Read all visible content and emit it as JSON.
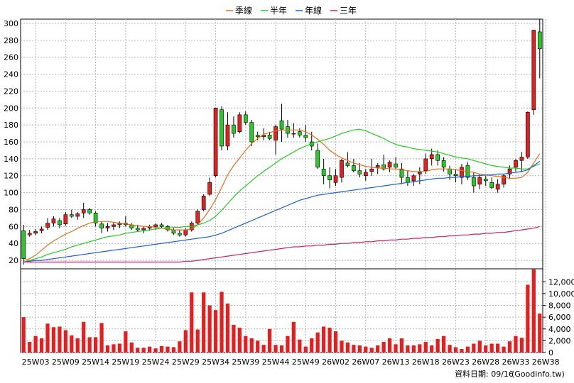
{
  "chart_data": {
    "type": "candlestick",
    "legend": [
      {
        "name": "季線",
        "color": "#e0701b"
      },
      {
        "name": "半年",
        "color": "#22cc22"
      },
      {
        "name": "年線",
        "color": "#1e5fd0"
      },
      {
        "name": "三年",
        "color": "#cc1f6a"
      }
    ],
    "colors": {
      "up": "#e81d1d",
      "down": "#22cc22",
      "volume": "#e81d1d",
      "grid": "#b4b4b4"
    },
    "price_ylim": [
      10,
      305
    ],
    "price_ticks": [
      20,
      40,
      60,
      80,
      100,
      120,
      140,
      160,
      180,
      200,
      220,
      240,
      260,
      280,
      300
    ],
    "volume_ylim": [
      0,
      14200
    ],
    "volume_ticks": [
      0,
      2000,
      4000,
      6000,
      8000,
      10000,
      12000
    ],
    "volume_tick_labels": [
      "0",
      "2,000",
      "4,000",
      "6,000",
      "8,000",
      "10,000",
      "12,000"
    ],
    "x_labels": [
      "25W03",
      "25W09",
      "25W14",
      "25W19",
      "25W24",
      "25W29",
      "25W34",
      "25W39",
      "25W44",
      "25W49",
      "26W02",
      "26W07",
      "26W13",
      "26W18",
      "26W23",
      "26W28",
      "26W33",
      "26W38"
    ],
    "x_label_index": [
      2,
      7,
      12,
      17,
      22,
      27,
      32,
      37,
      42,
      47,
      52,
      57,
      62,
      67,
      72,
      77,
      82,
      87
    ],
    "candles": [
      [
        55,
        62,
        15,
        22
      ],
      [
        50,
        56,
        48,
        52
      ],
      [
        52,
        57,
        50,
        54
      ],
      [
        55,
        60,
        52,
        57
      ],
      [
        59,
        70,
        56,
        64
      ],
      [
        64,
        72,
        60,
        69
      ],
      [
        67,
        70,
        58,
        62
      ],
      [
        63,
        77,
        61,
        74
      ],
      [
        74,
        80,
        70,
        72
      ],
      [
        72,
        77,
        68,
        75
      ],
      [
        76,
        88,
        70,
        80
      ],
      [
        80,
        82,
        74,
        76
      ],
      [
        76,
        78,
        60,
        64
      ],
      [
        63,
        66,
        52,
        58
      ],
      [
        58,
        64,
        54,
        60
      ],
      [
        60,
        65,
        56,
        62
      ],
      [
        62,
        66,
        58,
        64
      ],
      [
        64,
        72,
        60,
        62
      ],
      [
        62,
        64,
        56,
        58
      ],
      [
        58,
        62,
        54,
        56
      ],
      [
        56,
        60,
        52,
        58
      ],
      [
        58,
        62,
        55,
        60
      ],
      [
        60,
        64,
        56,
        62
      ],
      [
        62,
        64,
        58,
        60
      ],
      [
        60,
        62,
        54,
        56
      ],
      [
        56,
        58,
        50,
        52
      ],
      [
        52,
        56,
        48,
        50
      ],
      [
        50,
        58,
        48,
        56
      ],
      [
        56,
        66,
        54,
        64
      ],
      [
        64,
        80,
        62,
        78
      ],
      [
        80,
        98,
        78,
        96
      ],
      [
        98,
        118,
        96,
        112
      ],
      [
        120,
        200,
        118,
        200
      ],
      [
        198,
        202,
        150,
        155
      ],
      [
        155,
        195,
        150,
        180
      ],
      [
        180,
        190,
        165,
        170
      ],
      [
        172,
        195,
        170,
        192
      ],
      [
        192,
        196,
        180,
        183
      ],
      [
        183,
        186,
        155,
        160
      ],
      [
        168,
        172,
        162,
        166
      ],
      [
        166,
        176,
        162,
        168
      ],
      [
        168,
        172,
        162,
        164
      ],
      [
        162,
        180,
        145,
        178
      ],
      [
        185,
        205,
        160,
        175
      ],
      [
        178,
        186,
        165,
        170
      ],
      [
        170,
        182,
        165,
        170
      ],
      [
        172,
        176,
        165,
        168
      ],
      [
        168,
        180,
        160,
        165
      ],
      [
        160,
        172,
        150,
        155
      ],
      [
        150,
        158,
        128,
        130
      ],
      [
        128,
        140,
        110,
        120
      ],
      [
        120,
        130,
        105,
        115
      ],
      [
        112,
        128,
        108,
        120
      ],
      [
        118,
        140,
        112,
        138
      ],
      [
        135,
        148,
        130,
        132
      ],
      [
        132,
        140,
        124,
        126
      ],
      [
        126,
        135,
        118,
        122
      ],
      [
        120,
        128,
        114,
        124
      ],
      [
        125,
        140,
        120,
        128
      ],
      [
        130,
        135,
        122,
        132
      ],
      [
        133,
        145,
        126,
        128
      ],
      [
        130,
        138,
        124,
        136
      ],
      [
        134,
        142,
        128,
        130
      ],
      [
        128,
        135,
        110,
        118
      ],
      [
        118,
        126,
        108,
        112
      ],
      [
        114,
        122,
        108,
        120
      ],
      [
        122,
        130,
        110,
        124
      ],
      [
        126,
        146,
        122,
        140
      ],
      [
        140,
        152,
        132,
        145
      ],
      [
        145,
        150,
        132,
        138
      ],
      [
        138,
        142,
        125,
        130
      ],
      [
        128,
        132,
        115,
        122
      ],
      [
        122,
        128,
        112,
        120
      ],
      [
        118,
        134,
        110,
        130
      ],
      [
        132,
        136,
        115,
        118
      ],
      [
        118,
        124,
        100,
        108
      ],
      [
        110,
        122,
        104,
        118
      ],
      [
        116,
        120,
        108,
        114
      ],
      [
        112,
        118,
        104,
        106
      ],
      [
        104,
        116,
        100,
        110
      ],
      [
        110,
        122,
        106,
        120
      ],
      [
        122,
        132,
        116,
        128
      ],
      [
        130,
        140,
        125,
        138
      ],
      [
        138,
        148,
        124,
        142
      ],
      [
        142,
        196,
        140,
        195
      ],
      [
        198,
        292,
        192,
        292
      ],
      [
        290,
        305,
        235,
        270
      ]
    ],
    "volume": [
      6000,
      1800,
      2800,
      2400,
      4900,
      4300,
      4400,
      3800,
      2900,
      2400,
      5200,
      2600,
      2600,
      5000,
      1200,
      1400,
      1500,
      3600,
      1700,
      800,
      800,
      1000,
      700,
      1100,
      1000,
      900,
      1900,
      3800,
      10200,
      3900,
      10200,
      8000,
      7200,
      10300,
      8300,
      4700,
      4200,
      2800,
      2400,
      2000,
      1300,
      4000,
      1300,
      1200,
      2800,
      5200,
      2200,
      1000,
      2400,
      3400,
      4400,
      4200,
      3600,
      2000,
      1700,
      1300,
      1200,
      1000,
      800,
      1200,
      1800,
      2400,
      1400,
      2400,
      1200,
      1200,
      1400,
      1800,
      1200,
      2300,
      2800,
      1300,
      900,
      600,
      1000,
      1500,
      2000,
      1200,
      1500,
      1500,
      1000,
      1900,
      2800,
      2500,
      11500,
      14100,
      6600
    ],
    "ma_series": [
      {
        "name": "季線",
        "start": 0,
        "values": [
          20,
          22,
          26,
          32,
          38,
          43,
          47,
          51,
          54,
          58,
          61,
          64,
          66,
          66,
          66,
          65,
          64,
          63,
          62,
          61,
          60,
          60,
          59,
          58,
          57,
          56,
          56,
          56,
          57,
          62,
          70,
          80,
          92,
          106,
          121,
          132,
          141,
          150,
          158,
          164,
          169,
          171,
          173,
          174,
          174,
          174,
          174,
          172,
          168,
          163,
          157,
          150,
          145,
          141,
          138,
          135,
          133,
          131,
          130,
          129,
          129,
          128,
          128,
          127,
          126,
          125,
          125,
          125,
          127,
          128,
          128,
          128,
          127,
          126,
          125,
          124,
          122,
          121,
          120,
          119,
          118,
          117,
          117,
          118,
          124,
          135,
          146
        ]
      },
      {
        "name": "半年",
        "start": 0,
        "values": [
          18,
          20,
          22,
          24,
          27,
          29,
          31,
          33,
          36,
          38,
          40,
          42,
          44,
          46,
          48,
          49,
          50,
          52,
          53,
          54,
          55,
          56,
          57,
          58,
          58,
          59,
          59,
          60,
          60,
          62,
          64,
          67,
          72,
          79,
          87,
          95,
          102,
          108,
          114,
          120,
          125,
          130,
          135,
          140,
          144,
          148,
          152,
          155,
          158,
          160,
          162,
          164,
          167,
          170,
          172,
          174,
          175,
          173,
          170,
          167,
          164,
          160,
          157,
          155,
          154,
          152,
          151,
          150,
          149,
          148,
          146,
          144,
          142,
          141,
          140,
          138,
          136,
          134,
          132,
          131,
          130,
          129,
          129,
          128,
          128,
          131,
          134
        ]
      },
      {
        "name": "年線",
        "start": 0,
        "values": [
          18,
          19,
          20,
          20,
          21,
          22,
          23,
          24,
          25,
          26,
          27,
          28,
          29,
          30,
          31,
          32,
          33,
          34,
          35,
          36,
          37,
          38,
          39,
          40,
          41,
          42,
          43,
          44,
          45,
          46,
          47,
          48,
          50,
          52,
          55,
          58,
          61,
          64,
          67,
          70,
          73,
          76,
          79,
          82,
          85,
          88,
          91,
          93,
          95,
          97,
          98,
          99,
          100,
          101,
          102,
          103,
          104,
          105,
          106,
          107,
          108,
          109,
          110,
          111,
          112,
          113,
          114,
          115,
          116,
          117,
          117,
          118,
          118,
          119,
          119,
          120,
          120,
          121,
          121,
          122,
          122,
          123,
          124,
          125,
          127,
          132,
          137
        ]
      },
      {
        "name": "三年",
        "start": 0,
        "values": [
          18,
          18,
          18,
          18,
          18,
          18,
          18,
          18,
          18,
          18,
          18,
          18,
          18,
          18,
          18,
          18,
          18,
          18,
          18,
          18,
          18,
          18,
          18,
          18,
          18,
          18,
          18,
          19,
          19,
          20,
          21,
          22,
          23,
          24,
          25,
          26,
          27,
          28,
          29,
          30,
          31,
          32,
          33,
          34,
          35,
          36,
          36,
          37,
          37,
          38,
          38,
          39,
          39,
          40,
          40,
          41,
          41,
          42,
          42,
          43,
          43,
          44,
          44,
          45,
          45,
          46,
          46,
          47,
          47,
          48,
          48,
          49,
          49,
          50,
          50,
          51,
          51,
          52,
          52,
          53,
          53,
          54,
          55,
          56,
          57,
          58,
          60
        ]
      }
    ]
  },
  "footer": {
    "date_text": "資料日期: 09/16",
    "source_text": "(Goodinfo.tw)"
  }
}
